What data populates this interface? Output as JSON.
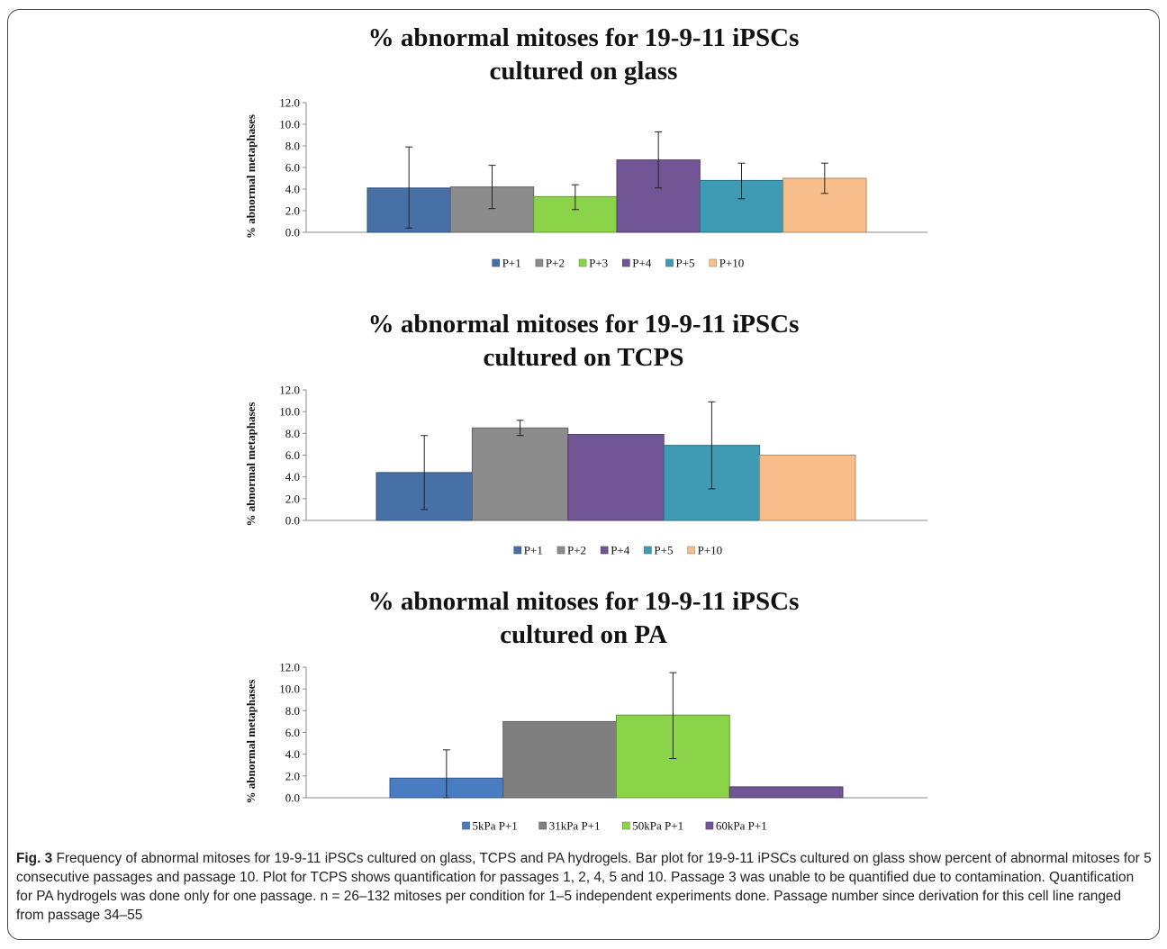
{
  "chart_data": [
    {
      "type": "bar",
      "title": [
        "% abnormal mitoses for 19-9-11 iPSCs",
        "cultured on glass"
      ],
      "ylabel": "% abnormal metaphases",
      "ylim": [
        0,
        12
      ],
      "yticks": [
        "0.0",
        "2.0",
        "4.0",
        "6.0",
        "8.0",
        "10.0",
        "12.0"
      ],
      "series": [
        {
          "name": "P+1",
          "value": 4.1,
          "error": [
            0.4,
            7.9
          ],
          "color": "#4670a6"
        },
        {
          "name": "P+2",
          "value": 4.2,
          "error": [
            2.2,
            6.2
          ],
          "color": "#8c8c8c"
        },
        {
          "name": "P+3",
          "value": 3.3,
          "error": [
            2.1,
            4.4
          ],
          "color": "#8bd44a"
        },
        {
          "name": "P+4",
          "value": 6.7,
          "error": [
            4.1,
            9.3
          ],
          "color": "#715594"
        },
        {
          "name": "P+5",
          "value": 4.8,
          "error": [
            3.1,
            6.4
          ],
          "color": "#3f9bb3"
        },
        {
          "name": "P+10",
          "value": 5.0,
          "error": [
            3.6,
            6.4
          ],
          "color": "#f7be8c"
        }
      ],
      "legend": "bottom"
    },
    {
      "type": "bar",
      "title": [
        "% abnormal mitoses for 19-9-11 iPSCs",
        "cultured on TCPS"
      ],
      "ylabel": "% abnormal metaphases",
      "ylim": [
        0,
        12
      ],
      "yticks": [
        "0.0",
        "2.0",
        "4.0",
        "6.0",
        "8.0",
        "10.0",
        "12.0"
      ],
      "series": [
        {
          "name": "P+1",
          "value": 4.4,
          "error": [
            1.0,
            7.8
          ],
          "color": "#4670a6"
        },
        {
          "name": "P+2",
          "value": 8.5,
          "error": [
            7.8,
            9.2
          ],
          "color": "#8c8c8c"
        },
        {
          "name": "P+4",
          "value": 7.9,
          "error": null,
          "color": "#715594"
        },
        {
          "name": "P+5",
          "value": 6.9,
          "error": [
            2.9,
            10.9
          ],
          "color": "#3f9bb3"
        },
        {
          "name": "P+10",
          "value": 6.0,
          "error": null,
          "color": "#f7be8c"
        }
      ],
      "legend": "bottom"
    },
    {
      "type": "bar",
      "title": [
        "% abnormal mitoses for 19-9-11 iPSCs",
        "cultured on PA"
      ],
      "ylabel": "% abnormal metaphases",
      "ylim": [
        0,
        12
      ],
      "yticks": [
        "0.0",
        "2.0",
        "4.0",
        "6.0",
        "8.0",
        "10.0",
        "12.0"
      ],
      "series": [
        {
          "name": "5kPa P+1",
          "value": 1.8,
          "error": [
            0.0,
            4.4
          ],
          "color": "#4a7cc2"
        },
        {
          "name": "31kPa P+1",
          "value": 7.0,
          "error": null,
          "color": "#7f7f7f"
        },
        {
          "name": "50kPa P+1",
          "value": 7.6,
          "error": [
            3.6,
            11.5
          ],
          "color": "#8bd44a"
        },
        {
          "name": "60kPa P+1",
          "value": 1.0,
          "error": null,
          "color": "#715594"
        }
      ],
      "legend": "bottom"
    }
  ],
  "caption": {
    "label": "Fig. 3",
    "text": " Frequency of abnormal mitoses for 19-9-11 iPSCs cultured on glass, TCPS and PA hydrogels. Bar plot for 19-9-11 iPSCs cultured on glass show percent of abnormal mitoses for 5 consecutive passages and passage 10. Plot for TCPS shows quantification for passages 1, 2, 4, 5 and 10. Passage 3 was unable to be quantified due to contamination. Quantification for PA hydrogels was done only for one passage. n = 26–132 mitoses per condition for 1–5 independent experiments done. Passage number since derivation for this cell line ranged from passage 34–55"
  }
}
